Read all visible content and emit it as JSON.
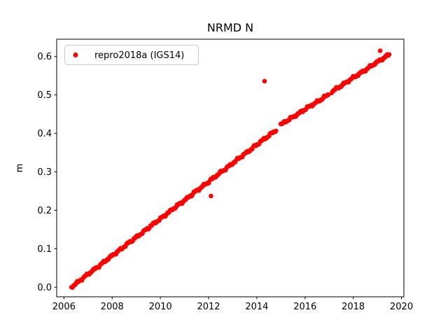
{
  "figure": {
    "background": "#ffffff",
    "plot_background": "#ffffff",
    "spine_color": "#000000"
  },
  "chart_data": {
    "type": "scatter",
    "title": "NRMD N",
    "xlabel": "",
    "ylabel": "m",
    "xlim": [
      2005.7,
      2020.1
    ],
    "ylim": [
      -0.025,
      0.645
    ],
    "xticks": [
      2006,
      2008,
      2010,
      2012,
      2014,
      2016,
      2018,
      2020
    ],
    "yticks": [
      0.0,
      0.1,
      0.2,
      0.3,
      0.4,
      0.5,
      0.6
    ],
    "grid": false,
    "legend_position": "upper left",
    "series": [
      {
        "name": "repro2018a (IGS14)",
        "color": "#ff0000",
        "marker": "dot",
        "marker_diameter_px": 7,
        "sample_step_years": 0.05,
        "trend_segments": [
          {
            "x_start": 2006.3,
            "y_start": 0.0,
            "x_end": 2014.82,
            "y_end": 0.409
          },
          {
            "x_start": 2015.0,
            "y_start": 0.423,
            "x_end": 2016.93,
            "y_end": 0.5
          },
          {
            "x_start": 2017.1,
            "y_start": 0.508,
            "x_end": 2019.5,
            "y_end": 0.606
          }
        ],
        "outliers": [
          {
            "x": 2012.1,
            "y": 0.237
          },
          {
            "x": 2014.32,
            "y": 0.536
          },
          {
            "x": 2019.12,
            "y": 0.615
          }
        ],
        "description": "Near-linear NRMD time series rising ~0.046 m/yr from 0.000 m in mid-2006 to ~0.61 m in mid-2019, with short data gaps near 2014.9 and 2017.0"
      }
    ]
  },
  "legend": {
    "entries": [
      {
        "label": "repro2018a (IGS14)",
        "marker_color": "#ff0000"
      }
    ],
    "border_color": "#cccccc",
    "background": "#ffffff"
  }
}
